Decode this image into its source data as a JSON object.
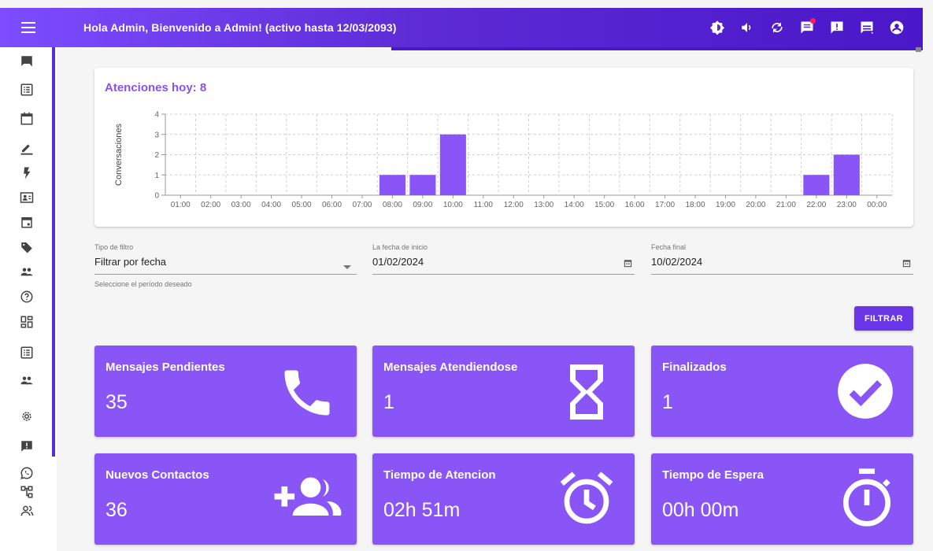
{
  "header": {
    "greeting": "Hola Admin, Bienvenido a Admin! (activo hasta 12/03/2093)",
    "icons": [
      "brightness-icon",
      "volume-icon",
      "sync-icon",
      "message-icon",
      "alert-icon",
      "chat-icon",
      "account-icon"
    ],
    "notification_color": "#ff1e56",
    "accent": "#5e2bd6"
  },
  "sidebar": {
    "items": [
      "chat-icon",
      "list-icon",
      "calendar-icon",
      "edit-icon",
      "flash-icon",
      "contact-card-icon",
      "event-icon",
      "tag-icon",
      "people-icon",
      "help-icon",
      "dashboard-icon",
      "list-alt-icon",
      "group-icon",
      "settings-icon",
      "feedback-icon",
      "whatsapp-icon",
      "tree-icon",
      "users-icon"
    ]
  },
  "chart": {
    "title": "Atenciones hoy: 8"
  },
  "chart_data": {
    "type": "bar",
    "title": "Atenciones hoy: 8",
    "xlabel": "",
    "ylabel": "Conversaciones",
    "categories": [
      "01:00",
      "02:00",
      "03:00",
      "04:00",
      "05:00",
      "06:00",
      "07:00",
      "08:00",
      "09:00",
      "10:00",
      "11:00",
      "12:00",
      "13:00",
      "14:00",
      "15:00",
      "16:00",
      "17:00",
      "18:00",
      "19:00",
      "20:00",
      "21:00",
      "22:00",
      "23:00",
      "00:00"
    ],
    "values": [
      0,
      0,
      0,
      0,
      0,
      0,
      0,
      1,
      1,
      3,
      0,
      0,
      0,
      0,
      0,
      0,
      0,
      0,
      0,
      0,
      0,
      1,
      2,
      0
    ],
    "ylim": [
      0,
      4
    ],
    "yticks": [
      "0",
      "1",
      "2",
      "3",
      "4"
    ],
    "grid": true,
    "color": "#8a55f7"
  },
  "filters": {
    "type": {
      "label": "Tipo de filtro",
      "value": "Filtrar por fecha",
      "hint": "Seleccione el período deseado"
    },
    "start": {
      "label": "La fecha de inicio",
      "value": "01/02/2024"
    },
    "end": {
      "label": "Fecha final",
      "value": "10/02/2024"
    },
    "button": "FILTRAR"
  },
  "stats": [
    {
      "label": "Mensajes Pendientes",
      "value": "35",
      "icon": "phone-icon"
    },
    {
      "label": "Mensajes Atendiendose",
      "value": "1",
      "icon": "hourglass-icon"
    },
    {
      "label": "Finalizados",
      "value": "1",
      "icon": "check-circle-icon"
    },
    {
      "label": "Nuevos Contactos",
      "value": "36",
      "icon": "group-add-icon"
    },
    {
      "label": "Tiempo de Atencion",
      "value": "02h 51m",
      "icon": "alarm-icon"
    },
    {
      "label": "Tiempo de Espera",
      "value": "00h 00m",
      "icon": "timer-icon"
    }
  ],
  "card_color": "#8a55f7"
}
